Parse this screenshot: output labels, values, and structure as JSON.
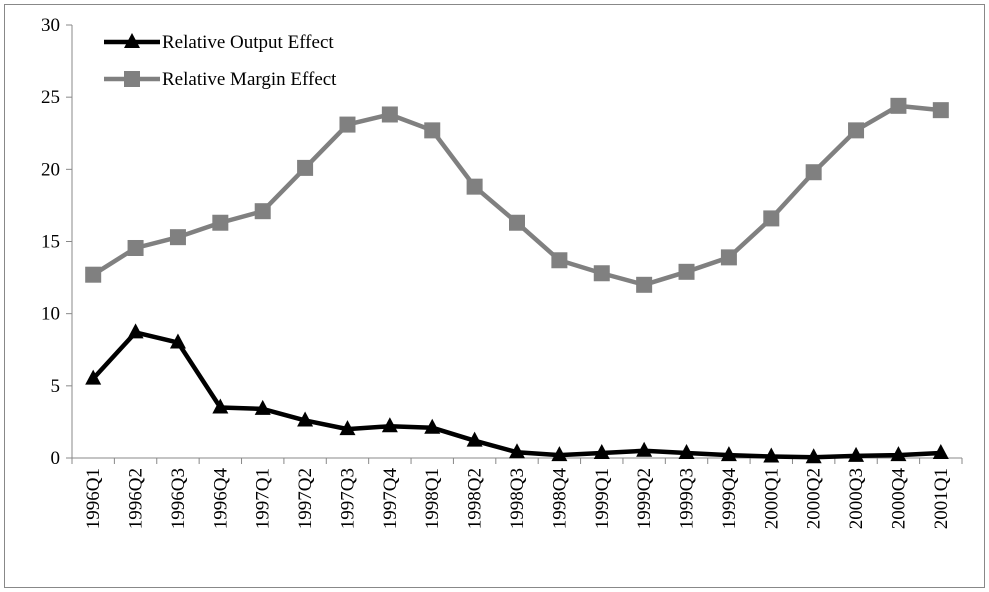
{
  "chart_data": {
    "type": "line",
    "categories": [
      "1996Q1",
      "1996Q2",
      "1996Q3",
      "1996Q4",
      "1997Q1",
      "1997Q2",
      "1997Q3",
      "1997Q4",
      "1998Q1",
      "1998Q2",
      "1998Q3",
      "1998Q4",
      "1999Q1",
      "1999Q2",
      "1999Q3",
      "1999Q4",
      "2000Q1",
      "2000Q2",
      "2000Q3",
      "2000Q4",
      "2001Q1"
    ],
    "series": [
      {
        "name": "Relative Output Effect",
        "color": "#000000",
        "marker": "triangle",
        "values": [
          5.5,
          8.7,
          8.0,
          3.5,
          3.4,
          2.6,
          2.0,
          2.2,
          2.1,
          1.2,
          0.4,
          0.2,
          0.35,
          0.5,
          0.35,
          0.2,
          0.1,
          0.05,
          0.15,
          0.2,
          0.35
        ]
      },
      {
        "name": "Relative Margin Effect",
        "color": "#808080",
        "marker": "square",
        "values": [
          12.7,
          14.55,
          15.3,
          16.3,
          17.1,
          20.1,
          23.1,
          23.8,
          22.7,
          18.8,
          16.3,
          13.7,
          12.8,
          12.0,
          12.9,
          13.9,
          16.6,
          19.8,
          22.7,
          24.4,
          24.1
        ]
      }
    ],
    "ylim": [
      0,
      30
    ],
    "yticks": [
      0,
      5,
      10,
      15,
      20,
      25,
      30
    ],
    "legend": "top-left"
  }
}
